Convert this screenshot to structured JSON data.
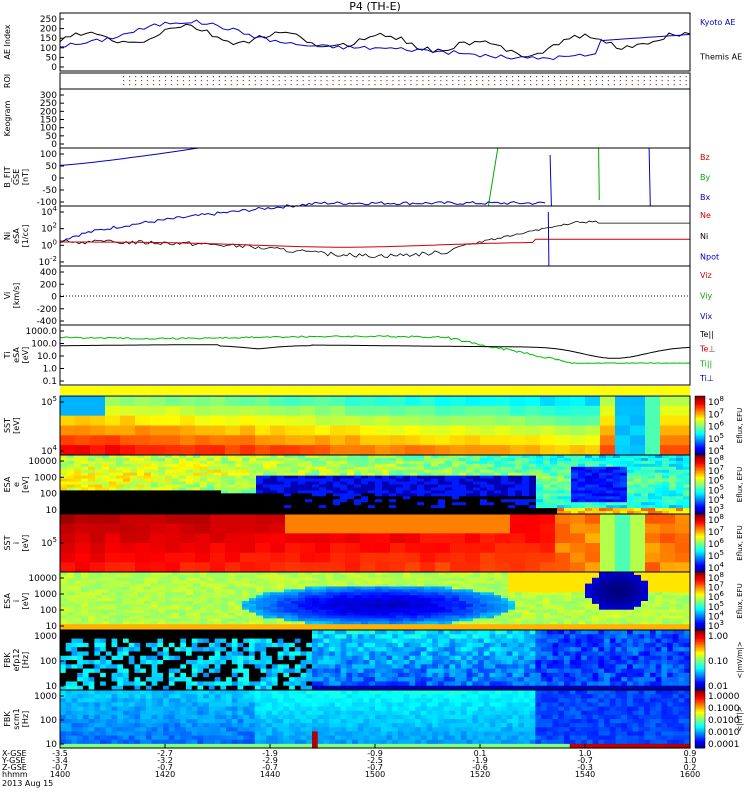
{
  "title": "P4 (TH-E)",
  "chart_data": [
    {
      "type": "line",
      "ylabel": "AE Index",
      "yticks": [
        "250",
        "200",
        "150",
        "100",
        "50",
        "0"
      ],
      "series": [
        {
          "name": "Kyoto AE",
          "color": "#0000cc"
        },
        {
          "name": "Themis AE",
          "color": "#000000"
        }
      ]
    },
    {
      "type": "line",
      "ylabel": "ROI",
      "yticks": []
    },
    {
      "type": "heatmap",
      "ylabel": "Keogram",
      "yticks": [
        "300",
        "250",
        "200",
        "150",
        "100",
        "50",
        "0"
      ]
    },
    {
      "type": "line",
      "ylabel": [
        "B_FIT",
        "GSE",
        "[nT]"
      ],
      "yticks": [
        "100",
        "50",
        "0",
        "-50",
        "-100"
      ],
      "series": [
        {
          "name": "Bz",
          "color": "#cc0000"
        },
        {
          "name": "By",
          "color": "#00aa00"
        },
        {
          "name": "Bx",
          "color": "#0000cc"
        }
      ]
    },
    {
      "type": "line",
      "ylabel": [
        "Ni",
        "eSA",
        "[1/cc]"
      ],
      "yticks": [
        "10^4",
        "10^2",
        "10^0",
        "10^-2"
      ],
      "series": [
        {
          "name": "Ne",
          "color": "#cc0000"
        },
        {
          "name": "Ni",
          "color": "#000000"
        },
        {
          "name": "Npot",
          "color": "#0000cc"
        }
      ]
    },
    {
      "type": "line",
      "ylabel": [
        "Vi",
        "[km/s]"
      ],
      "yticks": [
        "400",
        "200",
        "0",
        "-200",
        "-400"
      ],
      "series": [
        {
          "name": "Viz",
          "color": "#cc0000"
        },
        {
          "name": "Viy",
          "color": "#00aa00"
        },
        {
          "name": "Vix",
          "color": "#0000cc"
        }
      ]
    },
    {
      "type": "line",
      "ylabel": [
        "Ti",
        "eSA",
        "[eV]"
      ],
      "yticks": [
        "1000.0",
        "100.0",
        "10.0",
        "1.0",
        "0.1"
      ],
      "series": [
        {
          "name": "Te||",
          "color": "#000000"
        },
        {
          "name": "Te⊥",
          "color": "#cc0000"
        },
        {
          "name": "Ti||",
          "color": "#00aa00"
        },
        {
          "name": "Ti⊥",
          "color": "#0000cc"
        }
      ]
    },
    {
      "type": "heatmap",
      "ylabel": [
        "SST",
        "[eV]"
      ],
      "yticks": [
        "10^5",
        "10^4"
      ],
      "cbar": [
        "10^8",
        "10^7",
        "10^6",
        "10^5",
        "10^4"
      ],
      "cbar_label": "Eflux, EFU"
    },
    {
      "type": "heatmap",
      "ylabel": [
        "ESA",
        "e",
        "[eV]"
      ],
      "yticks": [
        "10000",
        "1000",
        "100",
        "10"
      ],
      "cbar": [
        "10^8",
        "10^7",
        "10^6",
        "10^5",
        "10^4",
        "10^3"
      ],
      "cbar_label": "Eflux, EFU"
    },
    {
      "type": "heatmap",
      "ylabel": [
        "SST",
        "i",
        "[eV]"
      ],
      "yticks": [
        "10^5"
      ],
      "cbar": [
        "10^8",
        "10^7",
        "10^6",
        "10^5",
        "10^4"
      ],
      "cbar_label": "Eflux, EFU"
    },
    {
      "type": "heatmap",
      "ylabel": [
        "ESA",
        "i",
        "[eV]"
      ],
      "yticks": [
        "10000",
        "1000",
        "100",
        "10"
      ],
      "cbar": [
        "10^8",
        "10^7",
        "10^6",
        "10^5",
        "10^4",
        "10^3"
      ],
      "cbar_label": "Eflux, EFU"
    },
    {
      "type": "heatmap",
      "ylabel": [
        "FBK",
        "efp12",
        "[Hz]"
      ],
      "yticks": [
        "1000",
        "100",
        "10"
      ],
      "cbar": [
        "1.00",
        "0.10",
        "0.01"
      ],
      "cbar_label": "<|mV/m|>"
    },
    {
      "type": "heatmap",
      "ylabel": [
        "FBK",
        "scm1",
        "[Hz]"
      ],
      "yticks": [
        "1000",
        "100",
        "10"
      ],
      "cbar": [
        "1.0000",
        "0.1000",
        "0.0100",
        "0.0010",
        "0.0001"
      ],
      "cbar_label": "<|nT|>"
    }
  ],
  "axis": {
    "row_labels": [
      "X-GSE",
      "Y-GSE",
      "Z-GSE",
      "hhmm",
      "2013 Aug 15"
    ],
    "columns": [
      {
        "x": "-3.5",
        "y": "-3.4",
        "z": "-0.7",
        "t": "1400"
      },
      {
        "x": "-2.7",
        "y": "-3.2",
        "z": "-0.7",
        "t": "1420"
      },
      {
        "x": "-1.9",
        "y": "-2.9",
        "z": "-0.7",
        "t": "1440"
      },
      {
        "x": "-0.9",
        "y": "-2.5",
        "z": "-0.7",
        "t": "1500"
      },
      {
        "x": "0.1",
        "y": "-1.9",
        "z": "-0.6",
        "t": "1520"
      },
      {
        "x": "1.0",
        "y": "-0.7",
        "z": "-0.3",
        "t": "1540"
      },
      {
        "x": "0.9",
        "y": "1.0",
        "z": "0.2",
        "t": "1600"
      }
    ]
  }
}
